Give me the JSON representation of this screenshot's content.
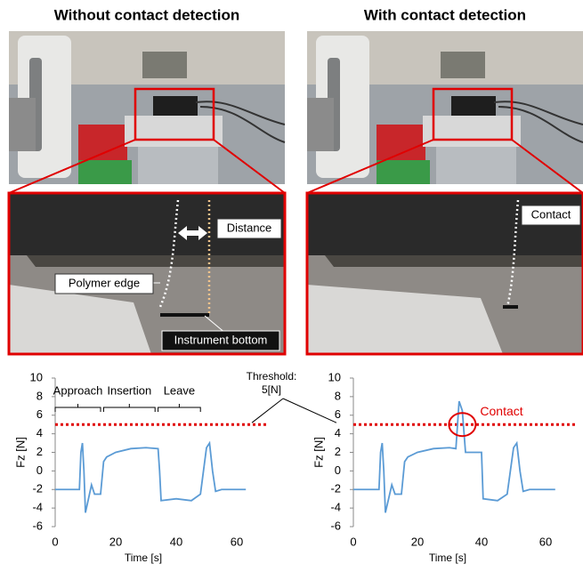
{
  "panel_titles": [
    "Without contact detection",
    "With contact detection"
  ],
  "photo_labels": {
    "distance": "Distance",
    "polymer_edge": "Polymer edge",
    "instrument_bottom": "Instrument bottom",
    "contact": "Contact"
  },
  "chart_data": [
    {
      "type": "line",
      "xlabel": "Time [s]",
      "ylabel": "Fz [N]",
      "color": "#5b9bd5",
      "x": [
        0,
        8,
        8.5,
        9,
        9.5,
        10,
        11,
        12,
        13,
        15,
        16,
        17,
        20,
        25,
        30,
        34,
        34.5,
        35,
        40,
        45,
        48,
        49,
        50,
        51,
        52,
        53,
        55,
        63
      ],
      "values": [
        -2,
        -2,
        2,
        3,
        0,
        -4.5,
        -3,
        -1.5,
        -2.5,
        -2.5,
        1,
        1.5,
        2,
        2.4,
        2.5,
        2.4,
        0,
        -3.2,
        -3,
        -3.2,
        -2.5,
        0,
        2.5,
        3,
        0,
        -2.2,
        -2,
        -2
      ],
      "xlim": [
        0,
        70
      ],
      "xticks": [
        0,
        20,
        40,
        60
      ],
      "ylim": [
        -6,
        10
      ],
      "yticks": [
        -6,
        -4,
        -2,
        0,
        2,
        4,
        6,
        8,
        10
      ],
      "threshold": {
        "value": 5,
        "color": "#e00000",
        "label": [
          "Threshold:",
          "5[N]"
        ]
      },
      "phases": [
        {
          "label": "Approach",
          "start": 0,
          "end": 15
        },
        {
          "label": "Insertion",
          "start": 16,
          "end": 33
        },
        {
          "label": "Leave",
          "start": 34,
          "end": 48
        }
      ]
    },
    {
      "type": "line",
      "xlabel": "Time [s]",
      "ylabel": "Fz [N]",
      "color": "#5b9bd5",
      "x": [
        0,
        8,
        8.5,
        9,
        9.5,
        10,
        11,
        12,
        13,
        15,
        16,
        17,
        20,
        25,
        30,
        32,
        33,
        34,
        35,
        40,
        40.5,
        45,
        48,
        49,
        50,
        51,
        52,
        53,
        55,
        63
      ],
      "values": [
        -2,
        -2,
        2,
        3,
        0,
        -4.5,
        -3,
        -1.5,
        -2.5,
        -2.5,
        1,
        1.5,
        2,
        2.4,
        2.5,
        2.4,
        7.5,
        6.5,
        2,
        2,
        -3,
        -3.2,
        -2.5,
        0,
        2.5,
        3,
        0,
        -2.2,
        -2,
        -2
      ],
      "xlim": [
        0,
        70
      ],
      "xticks": [
        0,
        20,
        40,
        60
      ],
      "ylim": [
        -6,
        10
      ],
      "yticks": [
        -6,
        -4,
        -2,
        0,
        2,
        4,
        6,
        8,
        10
      ],
      "threshold": {
        "value": 5,
        "color": "#e00000"
      },
      "contact": {
        "label": "Contact",
        "x": 34,
        "y": 5,
        "color": "#e00000"
      }
    }
  ]
}
